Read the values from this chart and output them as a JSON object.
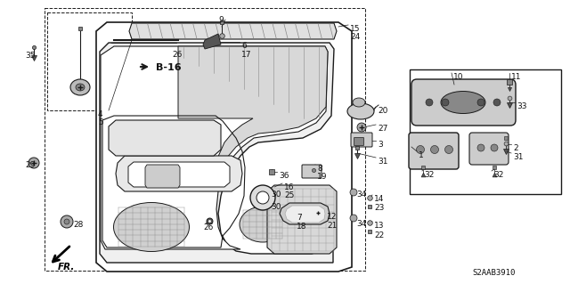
{
  "bg_color": "#ffffff",
  "fig_width": 6.4,
  "fig_height": 3.19,
  "dpi": 100,
  "diagram_code": "S2AAB3910",
  "line_color": "#1a1a1a",
  "text_color": "#111111",
  "font_size": 6.5,
  "labels": [
    [
      "9",
      245,
      18
    ],
    [
      "6",
      271,
      47
    ],
    [
      "17",
      271,
      57
    ],
    [
      "26",
      193,
      57
    ],
    [
      "35",
      28,
      58
    ],
    [
      "15",
      393,
      28
    ],
    [
      "24",
      393,
      37
    ],
    [
      "4",
      110,
      124
    ],
    [
      "5",
      110,
      133
    ],
    [
      "20",
      424,
      120
    ],
    [
      "27",
      424,
      140
    ],
    [
      "3",
      424,
      158
    ],
    [
      "31",
      424,
      177
    ],
    [
      "29",
      28,
      181
    ],
    [
      "16",
      319,
      206
    ],
    [
      "25",
      319,
      215
    ],
    [
      "26",
      228,
      251
    ],
    [
      "28",
      82,
      248
    ],
    [
      "36",
      313,
      193
    ],
    [
      "8",
      356,
      185
    ],
    [
      "19",
      356,
      194
    ],
    [
      "30",
      304,
      214
    ],
    [
      "30",
      304,
      228
    ],
    [
      "7",
      333,
      240
    ],
    [
      "18",
      333,
      250
    ],
    [
      "12",
      367,
      239
    ],
    [
      "21",
      367,
      249
    ],
    [
      "34",
      400,
      214
    ],
    [
      "34",
      400,
      247
    ],
    [
      "14",
      420,
      219
    ],
    [
      "23",
      420,
      229
    ],
    [
      "13",
      420,
      249
    ],
    [
      "22",
      420,
      260
    ],
    [
      "10",
      509,
      82
    ],
    [
      "11",
      574,
      82
    ],
    [
      "33",
      580,
      115
    ],
    [
      "2",
      576,
      162
    ],
    [
      "31",
      576,
      172
    ],
    [
      "1",
      470,
      170
    ],
    [
      "32",
      476,
      192
    ],
    [
      "32",
      554,
      192
    ]
  ]
}
